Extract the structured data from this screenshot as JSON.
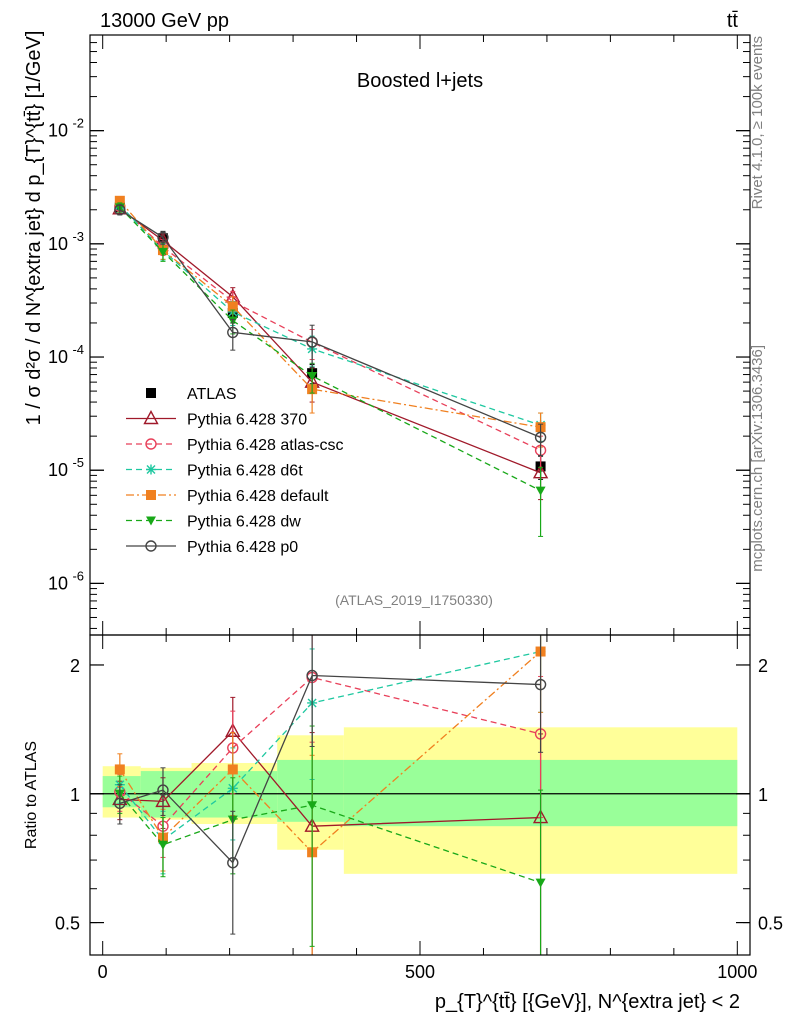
{
  "header": {
    "energy": "13000 GeV pp",
    "process": "tt̄"
  },
  "side_labels": {
    "rivet": "Rivet 4.1.0, ≥ 100k events",
    "mcplots": "mcplots.cern.ch [arXiv:1306.3436]"
  },
  "colors": {
    "ATLAS": "#000000",
    "Pythia 6.428 370": "#a0192a",
    "Pythia 6.428 atlas-csc": "#e8405a",
    "Pythia 6.428 d6t": "#1ec8a0",
    "Pythia 6.428 default": "#f08020",
    "Pythia 6.428 dw": "#18a818",
    "Pythia 6.428 p0": "#444444",
    "band_inner": "#99ff99",
    "band_outer": "#ffff99"
  },
  "chart_data": [
    {
      "type": "scatter",
      "title": "Boosted l+jets",
      "watermark": "(ATLAS_2019_I1750330)",
      "ylabel": "1 / σ d²σ / d N^{extra jet} d p_{T}^{tt̄} [1/GeV]",
      "yscale": "log",
      "ylim": [
        3.5e-07,
        0.07
      ],
      "xlim": [
        -20,
        1020
      ],
      "yticks": [
        {
          "value": 1e-06,
          "label": "10^-6"
        },
        {
          "value": 1e-05,
          "label": "10^-5"
        },
        {
          "value": 0.0001,
          "label": "10^-4"
        },
        {
          "value": 0.001,
          "label": "10^-3"
        },
        {
          "value": 0.01,
          "label": "10^-2"
        }
      ],
      "x": [
        27,
        95,
        205,
        330,
        690
      ],
      "bin_edges": [
        0,
        60,
        140,
        275,
        380,
        1000
      ],
      "series": [
        {
          "name": "ATLAS",
          "marker": "square-filled",
          "dash": "none",
          "values": [
            0.0021,
            0.00112,
            0.000245,
            7.2e-05,
            1.08e-05
          ],
          "err": [
            0.00025,
            0.00016,
            4.5e-05,
            1.4e-05,
            2.5e-06
          ]
        },
        {
          "name": "Pythia 6.428 370",
          "marker": "triangle-open",
          "dash": "solid",
          "values": [
            0.00204,
            0.00107,
            0.00034,
            6e-05,
            9.5e-06
          ],
          "err": [
            0.0002,
            0.00015,
            7e-05,
            2e-05,
            4e-06
          ]
        },
        {
          "name": "Pythia 6.428 atlas-csc",
          "marker": "circle-open",
          "dash": "dashed",
          "values": [
            0.00214,
            0.00094,
            0.00031,
            0.000135,
            1.5e-05
          ],
          "err": [
            0.0002,
            0.00015,
            7e-05,
            4e-05,
            5e-06
          ]
        },
        {
          "name": "Pythia 6.428 d6t",
          "marker": "star",
          "dash": "dashed",
          "values": [
            0.0022,
            0.00087,
            0.00025,
            0.000118,
            2.5e-05
          ],
          "err": [
            0.0002,
            0.00015,
            6e-05,
            3.5e-05,
            7e-06
          ]
        },
        {
          "name": "Pythia 6.428 default",
          "marker": "square-filled",
          "dash": "dashdot",
          "values": [
            0.0024,
            0.00088,
            0.00028,
            5.2e-05,
            2.4e-05
          ],
          "err": [
            0.0002,
            0.00015,
            6e-05,
            2e-05,
            8e-06
          ]
        },
        {
          "name": "Pythia 6.428 dw",
          "marker": "triangle-down-filled",
          "dash": "dashed",
          "values": [
            0.0021,
            0.00085,
            0.00021,
            6.8e-05,
            6.6e-06
          ],
          "err": [
            0.0002,
            0.00015,
            5e-05,
            2e-05,
            4e-06
          ]
        },
        {
          "name": "Pythia 6.428 p0",
          "marker": "circle-open",
          "dash": "solid",
          "values": [
            0.002,
            0.00114,
            0.000165,
            0.000136,
            1.95e-05
          ],
          "err": [
            0.0002,
            0.00015,
            5e-05,
            5.5e-05,
            6e-06
          ]
        }
      ]
    },
    {
      "type": "scatter",
      "title": "",
      "ylabel": "Ratio to ATLAS",
      "xlabel": "p_{T}^{tt̄} [{GeV}], N^{extra jet} < 2",
      "yscale": "log",
      "ylim": [
        0.42,
        2.35
      ],
      "xlim": [
        -20,
        1020
      ],
      "yticks": [
        {
          "value": 0.5,
          "label": "0.5"
        },
        {
          "value": 1,
          "label": "1"
        },
        {
          "value": 2,
          "label": "2"
        }
      ],
      "xticks": [
        {
          "value": 0,
          "label": "0"
        },
        {
          "value": 500,
          "label": "500"
        },
        {
          "value": 1000,
          "label": "1000"
        }
      ],
      "reference": 1,
      "band_inner": [
        [
          0.93,
          1.1
        ],
        [
          0.88,
          1.13
        ],
        [
          0.88,
          1.13
        ],
        [
          0.86,
          1.2
        ],
        [
          0.84,
          1.2
        ]
      ],
      "band_outer": [
        [
          0.88,
          1.16
        ],
        [
          0.87,
          1.15
        ],
        [
          0.85,
          1.18
        ],
        [
          0.74,
          1.37
        ],
        [
          0.65,
          1.43
        ]
      ],
      "x": [
        27,
        95,
        205,
        330,
        690
      ],
      "series": [
        {
          "name": "Pythia 6.428 370",
          "marker": "triangle-open",
          "dash": "solid",
          "values": [
            0.97,
            0.96,
            1.4,
            0.84,
            0.88
          ],
          "err": [
            0.1,
            0.13,
            0.28,
            0.55,
            0.5
          ]
        },
        {
          "name": "Pythia 6.428 atlas-csc",
          "marker": "circle-open",
          "dash": "dashed",
          "values": [
            1.01,
            0.84,
            1.28,
            1.87,
            1.38
          ],
          "err": [
            0.1,
            0.13,
            0.28,
            0.55,
            0.5
          ]
        },
        {
          "name": "Pythia 6.428 d6t",
          "marker": "star",
          "dash": "dashed",
          "values": [
            1.05,
            0.78,
            1.03,
            1.63,
            2.15
          ],
          "err": [
            0.1,
            0.13,
            0.25,
            0.55,
            0.6
          ]
        },
        {
          "name": "Pythia 6.428 default",
          "marker": "square-filled",
          "dash": "dashdot",
          "values": [
            1.14,
            0.79,
            1.14,
            0.73,
            2.15
          ],
          "err": [
            0.1,
            0.13,
            0.25,
            0.5,
            0.6
          ]
        },
        {
          "name": "Pythia 6.428 dw",
          "marker": "triangle-down-filled",
          "dash": "dashed",
          "values": [
            1.0,
            0.76,
            0.87,
            0.94,
            0.62
          ],
          "err": [
            0.1,
            0.12,
            0.22,
            0.5,
            0.4
          ]
        },
        {
          "name": "Pythia 6.428 p0",
          "marker": "circle-open",
          "dash": "solid",
          "values": [
            0.95,
            1.02,
            0.69,
            1.89,
            1.8
          ],
          "err": [
            0.1,
            0.13,
            0.22,
            0.6,
            0.55
          ]
        }
      ]
    }
  ]
}
